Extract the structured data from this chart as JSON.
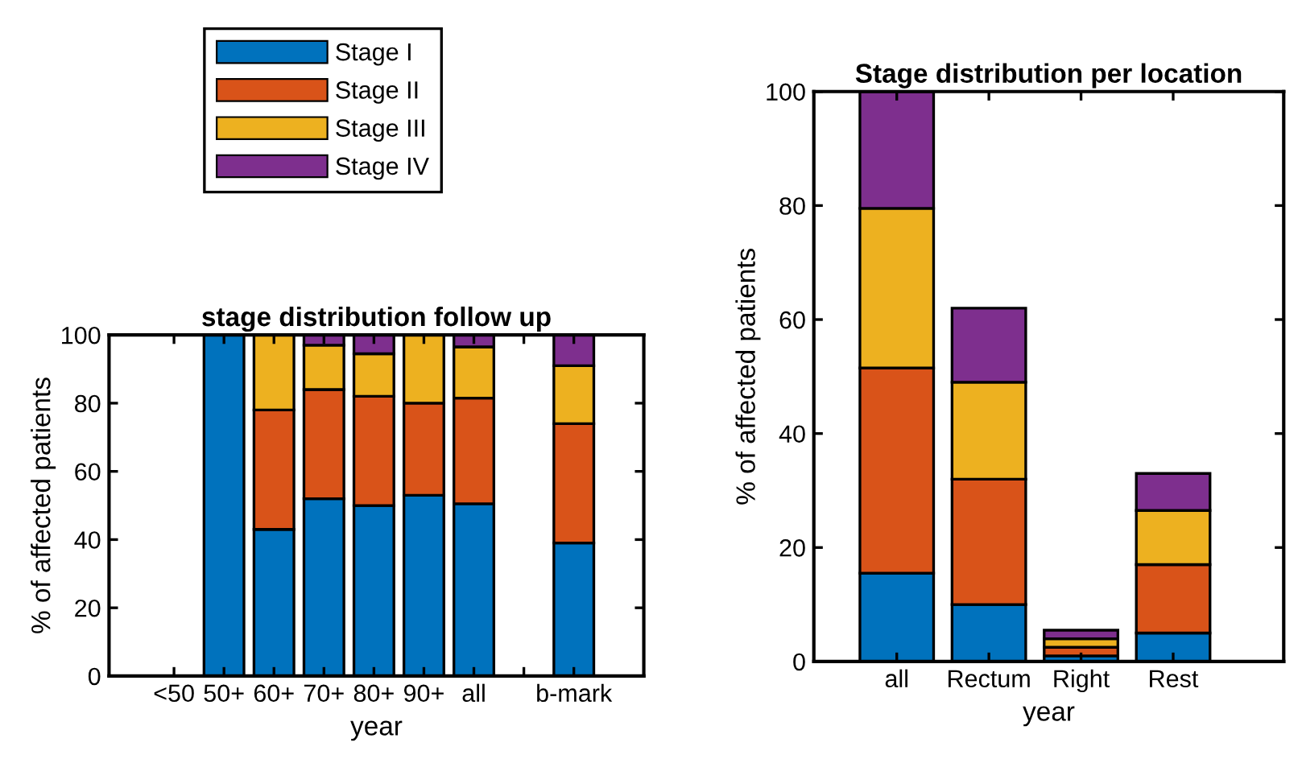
{
  "chart_data": [
    {
      "type": "bar",
      "stacked": true,
      "title": "stage distribution follow up",
      "xlabel": "year",
      "ylabel": "% of affected patients",
      "categories": [
        "<50",
        "50+",
        "60+",
        "70+",
        "80+",
        "90+",
        "all",
        null,
        "b-mark"
      ],
      "series": [
        {
          "name": "Stage I",
          "color": "#0072bd",
          "values": [
            null,
            100,
            43,
            52,
            50,
            53,
            50.5,
            null,
            39
          ]
        },
        {
          "name": "Stage II",
          "color": "#d95319",
          "values": [
            null,
            null,
            35,
            32,
            32,
            27,
            31,
            null,
            35
          ]
        },
        {
          "name": "Stage III",
          "color": "#edb120",
          "values": [
            null,
            null,
            22,
            13,
            12.5,
            20,
            15,
            null,
            17
          ]
        },
        {
          "name": "Stage IV",
          "color": "#7e2f8e",
          "values": [
            null,
            null,
            null,
            3,
            5.5,
            null,
            3.5,
            null,
            9
          ]
        }
      ],
      "ylim": [
        0,
        100
      ],
      "yticks": [
        0,
        20,
        40,
        60,
        80,
        100
      ],
      "grid": false,
      "legend": "top"
    },
    {
      "type": "bar",
      "stacked": true,
      "title": "Stage distribution per location",
      "xlabel": "year",
      "ylabel": "% of affected patients",
      "categories": [
        "all",
        "Rectum",
        "Right",
        "Rest"
      ],
      "series": [
        {
          "color": "#0072bd",
          "values": [
            15.5,
            10,
            1,
            5
          ]
        },
        {
          "color": "#d95319",
          "values": [
            36,
            22,
            1.5,
            12
          ]
        },
        {
          "color": "#edb120",
          "values": [
            28,
            17,
            1.5,
            9.5
          ]
        },
        {
          "color": "#7e2f8e",
          "values": [
            20.5,
            13,
            1.5,
            6.5
          ]
        }
      ],
      "ylim": [
        0,
        100
      ],
      "yticks": [
        0,
        20,
        40,
        60,
        80,
        100
      ],
      "grid": false
    }
  ]
}
